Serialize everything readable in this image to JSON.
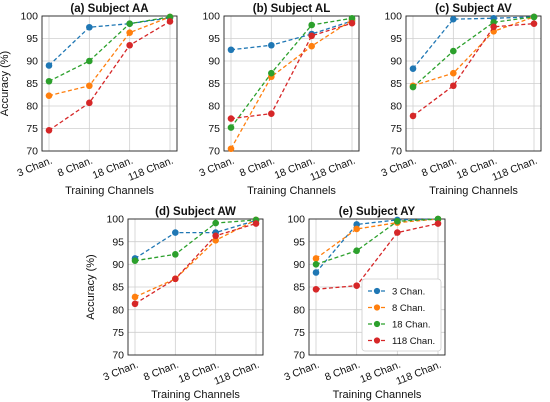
{
  "chart_data": [
    {
      "type": "line",
      "title": "(a) Subject AA",
      "categories": [
        "3 Chan.",
        "8 Chan.",
        "18 Chan.",
        "118 Chan."
      ],
      "xlabel": "Training Channels",
      "ylabel": "Accuracy (%)",
      "ylim": [
        70,
        100
      ],
      "yticks": [
        70,
        75,
        80,
        85,
        90,
        95,
        100
      ],
      "grid": true,
      "series": [
        {
          "name": "3 Chan.",
          "values": [
            89.0,
            97.5,
            98.3,
            99.6
          ]
        },
        {
          "name": "8 Chan.",
          "values": [
            82.3,
            84.5,
            96.3,
            99.8
          ]
        },
        {
          "name": "18 Chan.",
          "values": [
            85.5,
            90.0,
            98.3,
            99.8
          ]
        },
        {
          "name": "118 Chan.",
          "values": [
            74.6,
            80.7,
            93.5,
            98.8
          ]
        }
      ]
    },
    {
      "type": "line",
      "title": "(b) Subject AL",
      "categories": [
        "3 Chan.",
        "8 Chan.",
        "18 Chan.",
        "118 Chan."
      ],
      "xlabel": "Training Channels",
      "ylabel": "",
      "ylim": [
        70,
        100
      ],
      "yticks": [
        70,
        75,
        80,
        85,
        90,
        95,
        100
      ],
      "grid": true,
      "series": [
        {
          "name": "3 Chan.",
          "values": [
            92.5,
            93.5,
            96.0,
            98.9
          ]
        },
        {
          "name": "8 Chan.",
          "values": [
            70.5,
            86.5,
            93.3,
            99.1
          ]
        },
        {
          "name": "18 Chan.",
          "values": [
            75.2,
            87.3,
            98.0,
            99.5
          ]
        },
        {
          "name": "118 Chan.",
          "values": [
            77.2,
            78.3,
            95.6,
            98.4
          ]
        }
      ]
    },
    {
      "type": "line",
      "title": "(c) Subject AV",
      "categories": [
        "3 Chan.",
        "8 Chan.",
        "18 Chan.",
        "118 Chan."
      ],
      "xlabel": "Training Channels",
      "ylabel": "",
      "ylim": [
        70,
        100
      ],
      "yticks": [
        70,
        75,
        80,
        85,
        90,
        95,
        100
      ],
      "grid": true,
      "series": [
        {
          "name": "3 Chan.",
          "values": [
            88.3,
            99.3,
            99.5,
            99.8
          ]
        },
        {
          "name": "8 Chan.",
          "values": [
            84.5,
            87.3,
            96.6,
            99.8
          ]
        },
        {
          "name": "18 Chan.",
          "values": [
            84.2,
            92.2,
            98.6,
            99.8
          ]
        },
        {
          "name": "118 Chan.",
          "values": [
            77.8,
            84.5,
            97.6,
            98.3
          ]
        }
      ]
    },
    {
      "type": "line",
      "title": "(d) Subject AW",
      "categories": [
        "3 Chan.",
        "8 Chan.",
        "18 Chan.",
        "118 Chan."
      ],
      "xlabel": "Training Channels",
      "ylabel": "Accuracy (%)",
      "ylim": [
        70,
        100
      ],
      "yticks": [
        70,
        75,
        80,
        85,
        90,
        95,
        100
      ],
      "grid": true,
      "series": [
        {
          "name": "3 Chan.",
          "values": [
            91.3,
            97.0,
            97.0,
            99.7
          ]
        },
        {
          "name": "8 Chan.",
          "values": [
            82.8,
            86.8,
            95.3,
            99.8
          ]
        },
        {
          "name": "18 Chan.",
          "values": [
            90.8,
            92.2,
            99.1,
            99.8
          ]
        },
        {
          "name": "118 Chan.",
          "values": [
            81.3,
            86.8,
            96.3,
            99.0
          ]
        }
      ]
    },
    {
      "type": "line",
      "title": "(e) Subject AY",
      "categories": [
        "3 Chan.",
        "8 Chan.",
        "18 Chan.",
        "118 Chan."
      ],
      "xlabel": "Training Channels",
      "ylabel": "",
      "ylim": [
        70,
        100
      ],
      "yticks": [
        70,
        75,
        80,
        85,
        90,
        95,
        100
      ],
      "grid": true,
      "legend": "lower-right",
      "series": [
        {
          "name": "3 Chan.",
          "values": [
            88.2,
            98.8,
            99.8,
            100.0
          ]
        },
        {
          "name": "8 Chan.",
          "values": [
            91.3,
            97.8,
            99.2,
            100.0
          ]
        },
        {
          "name": "18 Chan.",
          "values": [
            90.0,
            93.0,
            99.5,
            100.0
          ]
        },
        {
          "name": "118 Chan.",
          "values": [
            84.5,
            85.3,
            97.0,
            99.0
          ]
        }
      ]
    }
  ],
  "colors": [
    "#1f77b4",
    "#ff7f0e",
    "#2ca02c",
    "#d62728"
  ]
}
